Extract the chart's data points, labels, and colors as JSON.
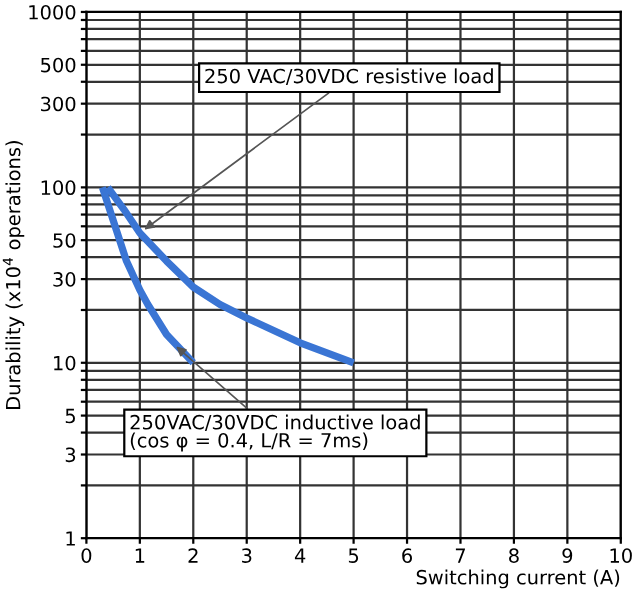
{
  "chart_data": {
    "type": "line",
    "xlabel": "Switching current (A)",
    "ylabel": "Durability (x10$^{4}$ operations)",
    "log": "y",
    "grid": true,
    "legend": false,
    "marker": "none",
    "line_style": "solid",
    "xlim": [
      0,
      10
    ],
    "xticks": [
      0,
      1,
      2,
      3,
      4,
      5,
      6,
      7,
      8,
      9,
      10
    ],
    "ylim": [
      1,
      1000
    ],
    "yticks": [
      1,
      {
        "value": 2,
        "label": null
      },
      3,
      {
        "value": 4,
        "label": null
      },
      5,
      {
        "value": 6,
        "label": null
      },
      {
        "value": 7,
        "label": null
      },
      {
        "value": 8,
        "label": null
      },
      {
        "value": 9,
        "label": null
      },
      10,
      {
        "value": 20,
        "label": null
      },
      30,
      {
        "value": 40,
        "label": null
      },
      50,
      {
        "value": 60,
        "label": null
      },
      {
        "value": 70,
        "label": null
      },
      {
        "value": 80,
        "label": null
      },
      {
        "value": 90,
        "label": null
      },
      100,
      {
        "value": 200,
        "label": null
      },
      300,
      {
        "value": 400,
        "label": null
      },
      500,
      {
        "value": 600,
        "label": null
      },
      {
        "value": 700,
        "label": null
      },
      {
        "value": 800,
        "label": null
      },
      {
        "value": 900,
        "label": null
      },
      1000
    ],
    "series": [
      {
        "color": "#3a75d4",
        "x": [
          0.4,
          0.7,
          1,
          1.5,
          2,
          2.5,
          3,
          4,
          5
        ],
        "values": [
          100,
          75,
          55,
          38,
          27,
          21.5,
          18,
          13,
          10
        ]
      },
      {
        "color": "#3a75d4",
        "x": [
          0.3,
          0.5,
          0.75,
          1,
          1.15,
          1.5,
          2
        ],
        "values": [
          100,
          65,
          38,
          26,
          21.5,
          14.5,
          10
        ]
      }
    ],
    "annotations": [
      {
        "text": "250 VAC/30VDC resistive load",
        "x": 1,
        "y": 55
      },
      {
        "text": "250VAC/30VDC inductive load\n(cos φ = 0.4, L/R = 7ms)",
        "x": 1.6,
        "y": 13
      }
    ]
  }
}
